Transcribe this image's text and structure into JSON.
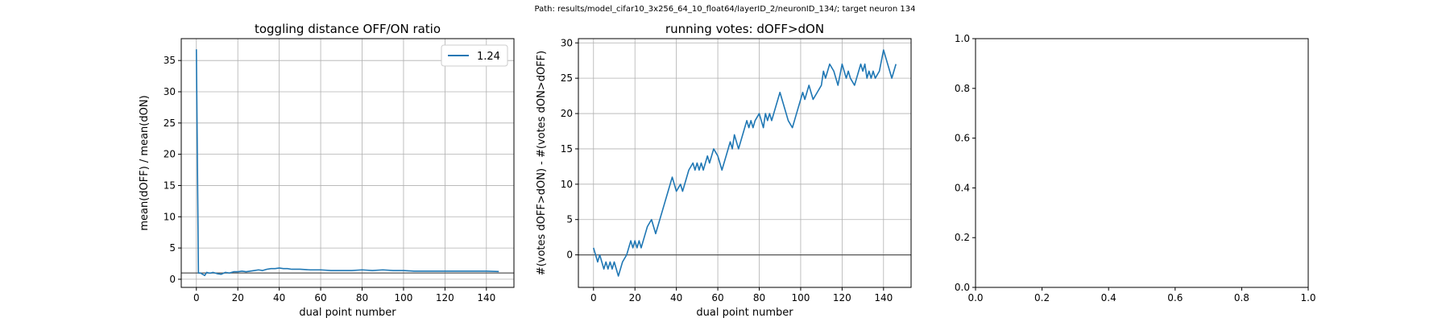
{
  "figure": {
    "suptitle": "Path: results/model_cifar10_3x256_64_10_float64/layerID_2/neuronID_134/; target neuron 134",
    "line_color": "#1f77b4",
    "hline_color": "#555555",
    "grid_color": "#b0b0b0"
  },
  "chart_data": [
    {
      "type": "line",
      "title": "toggling distance OFF/ON ratio",
      "xlabel": "dual point number",
      "ylabel": "mean(dOFF) / mean(dON)",
      "xlim": [
        -7.3,
        153.3
      ],
      "ylim": [
        -1.3,
        38.5
      ],
      "xticks": [
        0,
        20,
        40,
        60,
        80,
        100,
        120,
        140
      ],
      "yticks": [
        0,
        5,
        10,
        15,
        20,
        25,
        30,
        35
      ],
      "grid": true,
      "hline": 1,
      "legend": "top-right",
      "series": [
        {
          "name": "1.24",
          "x": [
            0,
            1,
            2,
            3,
            4,
            5,
            6,
            7,
            8,
            10,
            12,
            14,
            16,
            18,
            20,
            22,
            24,
            26,
            28,
            30,
            32,
            34,
            36,
            38,
            40,
            42,
            44,
            46,
            48,
            50,
            55,
            60,
            65,
            70,
            75,
            80,
            85,
            90,
            95,
            100,
            105,
            110,
            115,
            120,
            125,
            130,
            135,
            140,
            146
          ],
          "y": [
            36.8,
            1.0,
            1.0,
            0.8,
            0.6,
            1.1,
            1.0,
            1.0,
            1.1,
            0.9,
            0.8,
            1.1,
            1.0,
            1.2,
            1.2,
            1.3,
            1.2,
            1.3,
            1.4,
            1.5,
            1.4,
            1.6,
            1.7,
            1.7,
            1.8,
            1.7,
            1.7,
            1.6,
            1.6,
            1.6,
            1.5,
            1.5,
            1.4,
            1.4,
            1.4,
            1.5,
            1.4,
            1.5,
            1.4,
            1.4,
            1.3,
            1.3,
            1.3,
            1.3,
            1.3,
            1.3,
            1.3,
            1.3,
            1.24
          ]
        }
      ]
    },
    {
      "type": "line",
      "title": "running votes: dOFF>dON",
      "xlabel": "dual point number",
      "ylabel": "#(votes dOFF>dON) - #(votes dON>dOFF)",
      "xlim": [
        -7.3,
        153.3
      ],
      "ylim": [
        -4.6,
        30.6
      ],
      "xticks": [
        0,
        20,
        40,
        60,
        80,
        100,
        120,
        140
      ],
      "yticks": [
        0,
        5,
        10,
        15,
        20,
        25,
        30
      ],
      "grid": true,
      "hline": 0,
      "series": [
        {
          "x": [
            0,
            1,
            2,
            3,
            4,
            5,
            6,
            7,
            8,
            9,
            10,
            12,
            14,
            16,
            18,
            19,
            20,
            21,
            22,
            23,
            24,
            26,
            28,
            30,
            32,
            34,
            36,
            38,
            40,
            42,
            43,
            44,
            46,
            48,
            49,
            50,
            51,
            52,
            53,
            54,
            55,
            56,
            57,
            58,
            60,
            62,
            64,
            66,
            67,
            68,
            70,
            72,
            74,
            75,
            76,
            77,
            78,
            80,
            82,
            83,
            84,
            85,
            86,
            88,
            90,
            92,
            94,
            96,
            98,
            100,
            101,
            102,
            103,
            104,
            105,
            106,
            108,
            110,
            111,
            112,
            114,
            116,
            118,
            120,
            122,
            123,
            124,
            126,
            128,
            129,
            130,
            131,
            132,
            133,
            134,
            135,
            136,
            138,
            140,
            142,
            144,
            146
          ],
          "y": [
            1,
            0,
            -1,
            0,
            -1,
            -2,
            -1,
            -2,
            -1,
            -2,
            -1,
            -3,
            -1,
            0,
            2,
            1,
            2,
            1,
            2,
            1,
            2,
            4,
            5,
            3,
            5,
            7,
            9,
            11,
            9,
            10,
            9,
            10,
            12,
            13,
            12,
            13,
            12,
            13,
            12,
            13,
            14,
            13,
            14,
            15,
            14,
            12,
            14,
            16,
            15,
            17,
            15,
            17,
            19,
            18,
            19,
            18,
            19,
            20,
            18,
            20,
            19,
            20,
            19,
            21,
            23,
            21,
            19,
            18,
            20,
            22,
            23,
            22,
            23,
            24,
            23,
            22,
            23,
            24,
            26,
            25,
            27,
            26,
            24,
            27,
            25,
            26,
            25,
            24,
            26,
            27,
            26,
            27,
            25,
            26,
            25,
            26,
            25,
            26,
            29,
            27,
            25,
            27
          ]
        }
      ]
    },
    {
      "type": "line",
      "title": "",
      "xlabel": "",
      "ylabel": "",
      "xlim": [
        0,
        1
      ],
      "ylim": [
        0,
        1
      ],
      "xticks": [
        0.0,
        0.2,
        0.4,
        0.6,
        0.8,
        1.0
      ],
      "yticks": [
        0.0,
        0.2,
        0.4,
        0.6,
        0.8,
        1.0
      ],
      "grid": false,
      "series": []
    }
  ]
}
